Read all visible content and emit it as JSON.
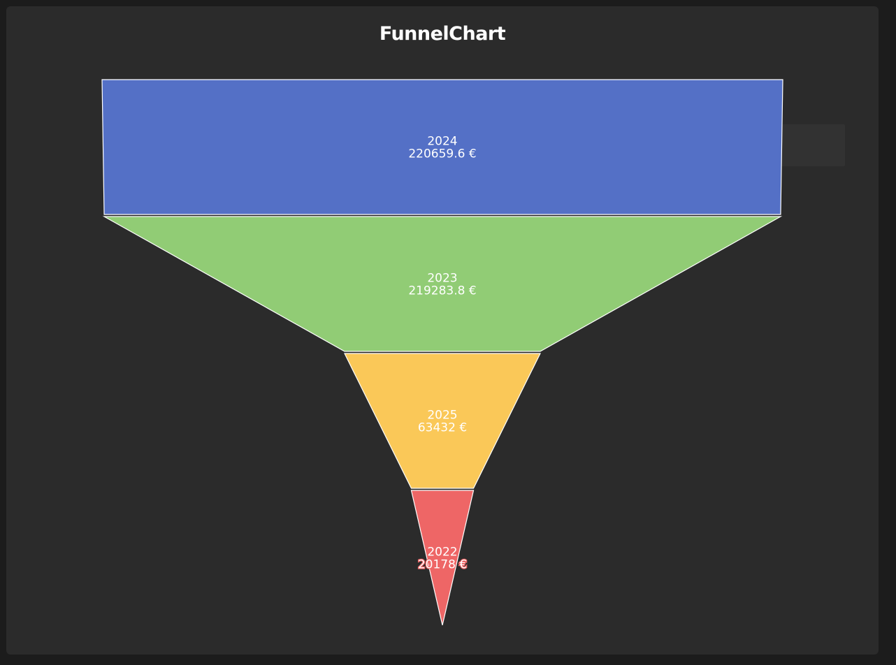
{
  "chart_data": {
    "type": "funnel",
    "title": "FunnelChart",
    "unit": "€",
    "stages": [
      {
        "label": "2024",
        "value": 220659.6,
        "value_text": "220659.6 €",
        "color": "#5470c6"
      },
      {
        "label": "2023",
        "value": 219283.8,
        "value_text": "219283.8 €",
        "color": "#91cc75"
      },
      {
        "label": "2025",
        "value": 63432,
        "value_text": "63432 €",
        "color": "#fac858"
      },
      {
        "label": "2022",
        "value": 20178,
        "value_text": "20178 €",
        "color": "#ee6666"
      }
    ],
    "sort": "descending",
    "label_position": "inside"
  },
  "colors": {
    "page_background": "#1c1c1c",
    "card_background": "#2b2b2b",
    "segment_border": "#ffffff",
    "label_text": "#ffffff"
  }
}
